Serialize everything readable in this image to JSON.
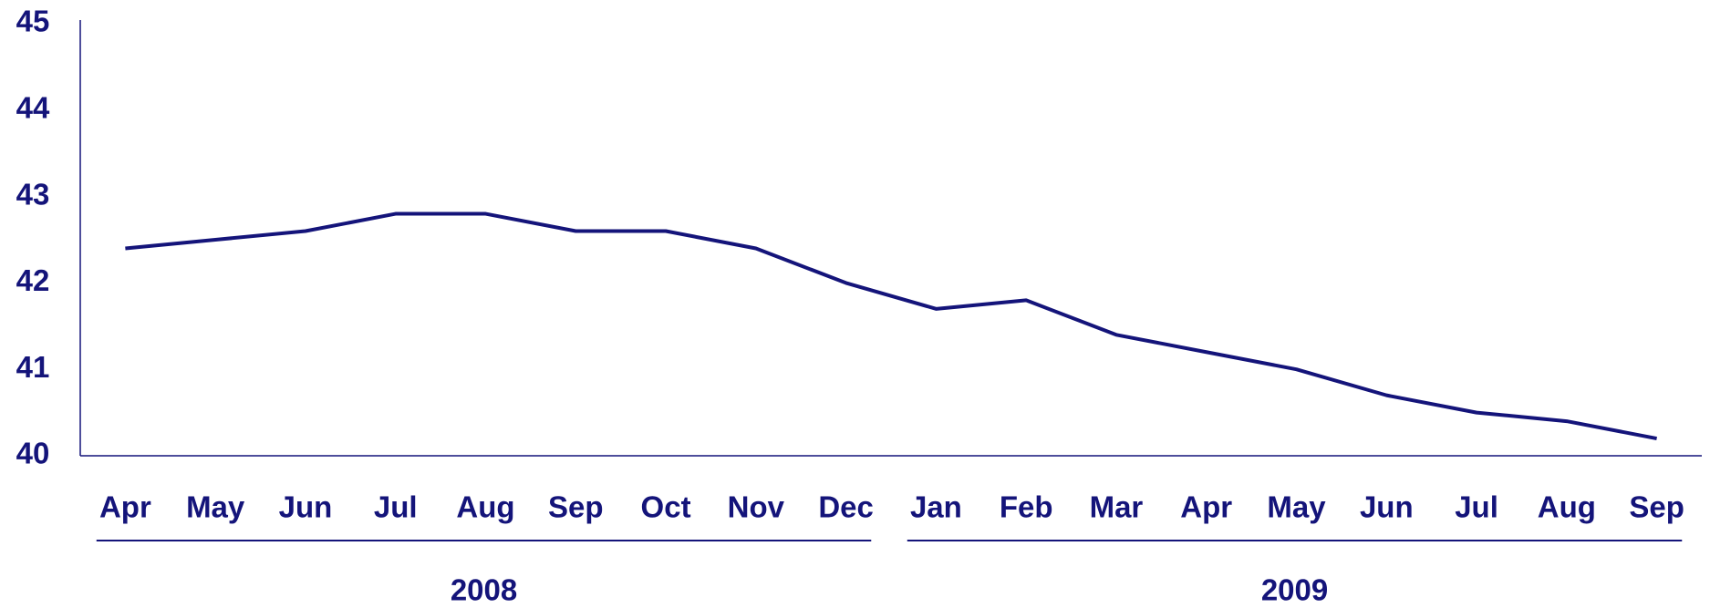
{
  "chart_data": {
    "type": "line",
    "categories": [
      "Apr",
      "May",
      "Jun",
      "Jul",
      "Aug",
      "Sep",
      "Oct",
      "Nov",
      "Dec",
      "Jan",
      "Feb",
      "Mar",
      "Apr",
      "May",
      "Jun",
      "Jul",
      "Aug",
      "Sep"
    ],
    "x_groups": [
      {
        "label": "2008",
        "size": 9
      },
      {
        "label": "2009",
        "size": 9
      }
    ],
    "series": [
      {
        "color": "#14147a",
        "values": [
          42.4,
          42.5,
          42.6,
          42.8,
          42.8,
          42.6,
          42.6,
          42.4,
          42.0,
          41.7,
          41.8,
          41.4,
          41.2,
          41.0,
          40.7,
          40.5,
          40.4,
          40.2
        ]
      }
    ],
    "ylim": [
      40,
      45
    ],
    "yticks": [
      40,
      41,
      42,
      43,
      44,
      45
    ],
    "grid": false
  }
}
